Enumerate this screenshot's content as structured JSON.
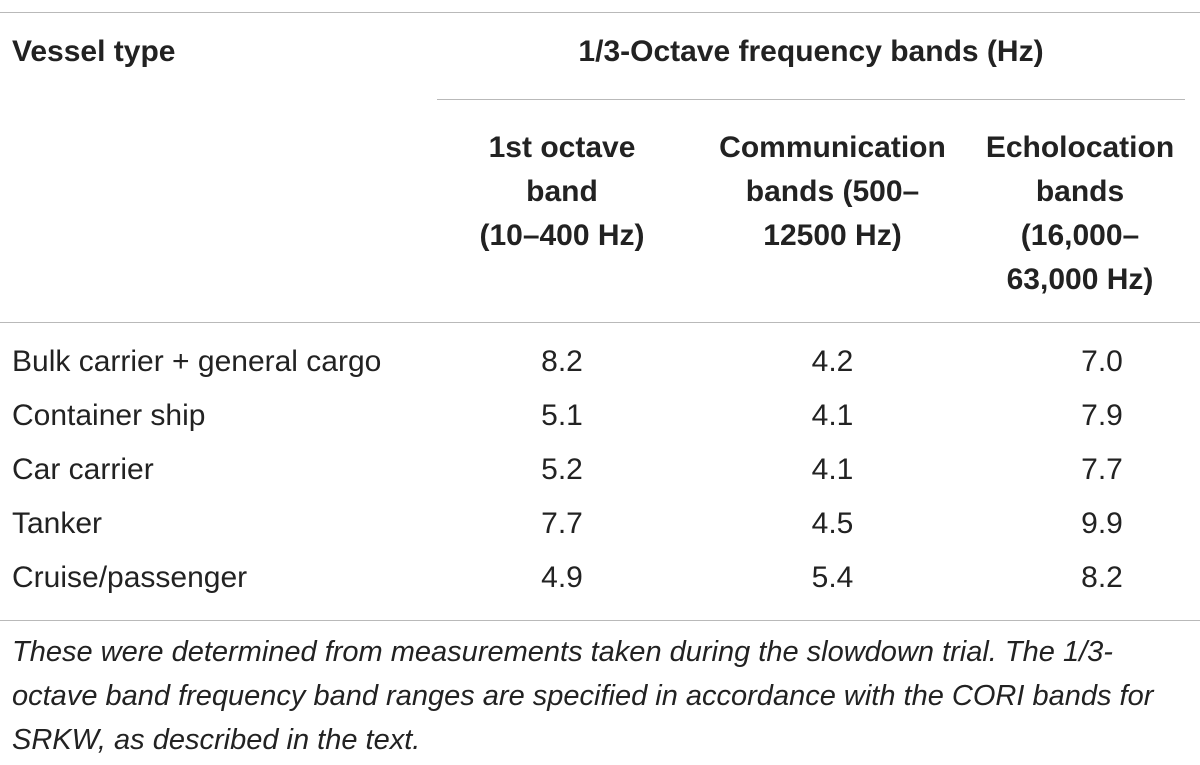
{
  "table": {
    "header": {
      "vessel_type": "Vessel type",
      "group": "1/3-Octave frequency bands (Hz)",
      "columns": [
        "1st octave\nband\n(10–400 Hz)",
        "Communication\nbands (500–\n12500 Hz)",
        "Echolocation\nbands\n(16,000–\n63,000 Hz)"
      ]
    },
    "rows": [
      {
        "vessel": "Bulk carrier + general cargo",
        "v1": "8.2",
        "v2": "4.2",
        "v3": "7.0"
      },
      {
        "vessel": "Container ship",
        "v1": "5.1",
        "v2": "4.1",
        "v3": "7.9"
      },
      {
        "vessel": "Car carrier",
        "v1": "5.2",
        "v2": "4.1",
        "v3": "7.7"
      },
      {
        "vessel": "Tanker",
        "v1": "7.7",
        "v2": "4.5",
        "v3": "9.9"
      },
      {
        "vessel": "Cruise/passenger",
        "v1": "4.9",
        "v2": "5.4",
        "v3": "8.2"
      }
    ],
    "footnote": "These were determined from measurements taken during the slowdown trial. The 1/3-octave band frequency band ranges are specified in accordance with the CORI bands for SRKW, as described in the text."
  }
}
